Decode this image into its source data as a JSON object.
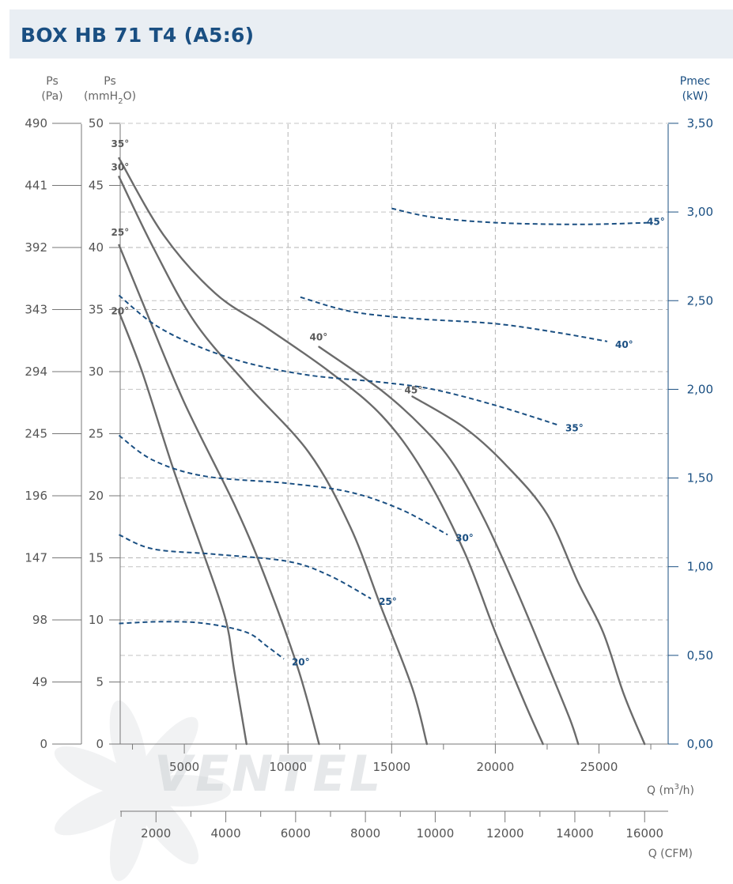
{
  "title": "BOX HB 71 T4 (A5:6)",
  "watermark": "VENTEL",
  "colors": {
    "title": "#1a4f82",
    "pressure_curve": "#6b6b6b",
    "power_curve": "#1a4f82",
    "grid": "#b5b5b5",
    "title_bg": "#e9eef3"
  },
  "chart_data": {
    "type": "line",
    "axes": {
      "ps_pa": {
        "label_top": "Ps",
        "label_unit": "(Pa)",
        "ticks": [
          "490",
          "441",
          "392",
          "343",
          "294",
          "245",
          "196",
          "147",
          "98",
          "49",
          "0"
        ]
      },
      "ps_mmh2o": {
        "label_top": "Ps",
        "label_unit_pre": "(mmH",
        "label_unit_sub": "2",
        "label_unit_post": "O)",
        "range": [
          0,
          50
        ],
        "ticks": [
          "50",
          "45",
          "40",
          "35",
          "30",
          "25",
          "20",
          "15",
          "10",
          "5",
          "0"
        ]
      },
      "pmec": {
        "label_top": "Pmec",
        "label_unit": "(kW)",
        "range": [
          0,
          3.5
        ],
        "ticks": [
          "3,50",
          "3,00",
          "2,50",
          "2,00",
          "1,50",
          "1,00",
          "0,50",
          "0,00"
        ]
      },
      "q_m3h": {
        "label_pre": "Q (m",
        "label_sup": "3",
        "label_post": "/h)",
        "ticks": [
          "5000",
          "10000",
          "15000",
          "20000",
          "25000"
        ]
      },
      "q_cfm": {
        "label": "Q (CFM)",
        "ticks": [
          "2000",
          "4000",
          "6000",
          "8000",
          "10000",
          "12000",
          "14000",
          "16000"
        ]
      }
    },
    "grid": true,
    "pressure_curves": [
      {
        "name": "20°",
        "points": [
          [
            1850,
            34.8
          ],
          [
            3000,
            29.8
          ],
          [
            4500,
            22
          ],
          [
            6000,
            15
          ],
          [
            7000,
            10
          ],
          [
            7400,
            6
          ],
          [
            8000,
            0
          ]
        ]
      },
      {
        "name": "25°",
        "points": [
          [
            1850,
            40.2
          ],
          [
            3000,
            35.5
          ],
          [
            5000,
            27.5
          ],
          [
            7500,
            19
          ],
          [
            9000,
            13
          ],
          [
            10500,
            6
          ],
          [
            11500,
            0
          ]
        ]
      },
      {
        "name": "30°",
        "points": [
          [
            1850,
            45.7
          ],
          [
            3500,
            40
          ],
          [
            5500,
            34
          ],
          [
            8000,
            29
          ],
          [
            11000,
            23.5
          ],
          [
            13000,
            17.5
          ],
          [
            14500,
            11
          ],
          [
            16000,
            4.5
          ],
          [
            16700,
            0
          ]
        ]
      },
      {
        "name": "35°",
        "points": [
          [
            1850,
            47.2
          ],
          [
            4000,
            41
          ],
          [
            6500,
            36.3
          ],
          [
            9000,
            33.5
          ],
          [
            12000,
            30
          ],
          [
            14500,
            26.5
          ],
          [
            16500,
            22
          ],
          [
            18500,
            15.5
          ],
          [
            20000,
            9
          ],
          [
            21500,
            3
          ],
          [
            22300,
            0
          ]
        ]
      },
      {
        "name": "40°",
        "points": [
          [
            11500,
            32
          ],
          [
            14500,
            28.5
          ],
          [
            16500,
            25.5
          ],
          [
            18000,
            22.5
          ],
          [
            19500,
            18
          ],
          [
            21000,
            12.5
          ],
          [
            22500,
            6.5
          ],
          [
            23600,
            2
          ],
          [
            24000,
            0
          ]
        ]
      },
      {
        "name": "45°",
        "points": [
          [
            16000,
            28
          ],
          [
            18500,
            25.5
          ],
          [
            20500,
            22.5
          ],
          [
            22500,
            18.5
          ],
          [
            24000,
            13
          ],
          [
            25200,
            9
          ],
          [
            26200,
            4
          ],
          [
            27200,
            0
          ]
        ]
      }
    ],
    "power_curves": [
      {
        "name": "20°",
        "points": [
          [
            1850,
            0.68
          ],
          [
            4000,
            0.69
          ],
          [
            6000,
            0.68
          ],
          [
            8000,
            0.63
          ],
          [
            9000,
            0.55
          ],
          [
            9800,
            0.48
          ]
        ]
      },
      {
        "name": "25°",
        "points": [
          [
            1850,
            1.18
          ],
          [
            3500,
            1.1
          ],
          [
            6500,
            1.07
          ],
          [
            10000,
            1.03
          ],
          [
            12000,
            0.95
          ],
          [
            14000,
            0.82
          ]
        ]
      },
      {
        "name": "30°",
        "points": [
          [
            1850,
            1.74
          ],
          [
            3500,
            1.6
          ],
          [
            6000,
            1.51
          ],
          [
            10000,
            1.47
          ],
          [
            13000,
            1.42
          ],
          [
            15500,
            1.32
          ],
          [
            17700,
            1.18
          ]
        ]
      },
      {
        "name": "35°",
        "points": [
          [
            1850,
            2.53
          ],
          [
            3500,
            2.37
          ],
          [
            5500,
            2.25
          ],
          [
            8000,
            2.15
          ],
          [
            11000,
            2.08
          ],
          [
            14500,
            2.04
          ],
          [
            17000,
            2.0
          ],
          [
            20000,
            1.91
          ],
          [
            23000,
            1.8
          ]
        ]
      },
      {
        "name": "40°",
        "points": [
          [
            10600,
            2.52
          ],
          [
            13000,
            2.44
          ],
          [
            16000,
            2.4
          ],
          [
            20000,
            2.37
          ],
          [
            23000,
            2.32
          ],
          [
            25400,
            2.27
          ]
        ]
      },
      {
        "name": "45°",
        "points": [
          [
            15000,
            3.02
          ],
          [
            17000,
            2.97
          ],
          [
            20000,
            2.94
          ],
          [
            24000,
            2.93
          ],
          [
            27500,
            2.94
          ]
        ]
      }
    ]
  }
}
